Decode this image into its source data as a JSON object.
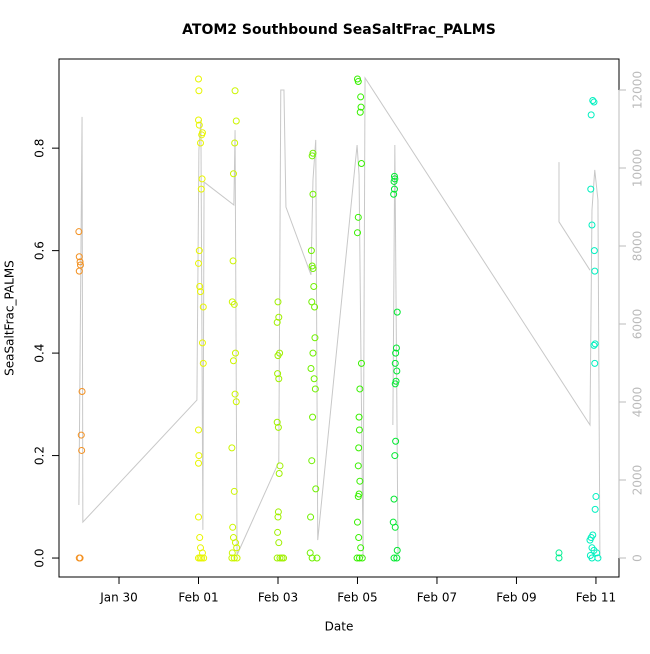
{
  "chart_data": {
    "type": "scatter",
    "title": "ATOM2 Southbound SeaSaltFrac_PALMS",
    "x_label": "Date",
    "y_label": "SeaSaltFrac_PALMS",
    "xlim": [
      28.49,
      42.58
    ],
    "xticks": [
      {
        "value": 30,
        "label": "Jan 30"
      },
      {
        "value": 32,
        "label": "Feb 01"
      },
      {
        "value": 34,
        "label": "Feb 03"
      },
      {
        "value": 36,
        "label": "Feb 05"
      },
      {
        "value": 38,
        "label": "Feb 07"
      },
      {
        "value": 40,
        "label": "Feb 09"
      },
      {
        "value": 42,
        "label": "Feb 11"
      }
    ],
    "ylim": [
      -0.037,
      0.974
    ],
    "yticks": [
      {
        "value": 0,
        "label": "0.0"
      },
      0.2,
      0.4,
      0.6,
      0.8
    ],
    "y2lim": [
      -487,
      12795
    ],
    "y2ticks": [
      0,
      2000,
      4000,
      6000,
      8000,
      10000,
      12000
    ],
    "line": {
      "color": "#c8c8c8",
      "axis": "y2",
      "x": [
        28.99,
        29.07,
        29.09,
        31.96,
        32.01,
        32.06,
        32.11,
        32.14,
        32.89,
        32.92,
        32.97,
        34.02,
        34.07,
        34.15,
        34.2,
        34.83,
        34.88,
        34.95,
        35.0,
        35.99,
        36.04,
        36.14,
        36.19,
        41.85,
        41.9,
        41.97,
        42.05,
        42.1,
        null,
        36.89,
        36.94,
        37.02,
        null,
        41.07,
        41.07,
        41.85
      ],
      "values": [
        1360,
        11310,
        920,
        4050,
        10460,
        11230,
        720,
        9640,
        9050,
        10970,
        80,
        2460,
        12000,
        12000,
        9000,
        7260,
        9690,
        10720,
        460,
        10590,
        9820,
        0,
        12310,
        3410,
        8920,
        9950,
        9180,
        0,
        null,
        3410,
        10590,
        80,
        null,
        10150,
        8620,
        7380
      ]
    },
    "series": [
      {
        "color": "#f39020",
        "x": [
          28.99,
          29.0,
          29.02,
          29.03,
          29.0,
          29.07,
          29.05,
          29.06,
          29.0,
          29.02
        ],
        "values": [
          0.637,
          0.588,
          0.578,
          0.572,
          0.56,
          0.325,
          0.24,
          0.21,
          0,
          0
        ]
      },
      {
        "color": "#e8f500",
        "x": [
          32.0,
          32.01,
          32.0,
          32.02,
          32.1,
          32.08,
          32.05,
          32.09,
          32.07,
          32.02,
          32.0,
          32.03,
          32.05,
          32.12,
          32.1,
          32.12,
          32.0,
          32.01,
          32.0,
          32.0,
          32.03,
          32.05,
          32.1,
          32.0,
          32.04,
          32.08,
          32.13
        ],
        "values": [
          0.935,
          0.912,
          0.855,
          0.845,
          0.83,
          0.826,
          0.81,
          0.74,
          0.72,
          0.6,
          0.575,
          0.53,
          0.52,
          0.49,
          0.42,
          0.38,
          0.25,
          0.2,
          0.185,
          0.08,
          0.04,
          0.02,
          0.01,
          0,
          0,
          0,
          0
        ]
      },
      {
        "color": "#ccf500",
        "x": [
          32.92,
          32.95,
          32.91,
          32.88,
          32.87,
          32.85,
          32.9,
          32.93,
          32.88,
          32.92,
          32.95,
          32.84,
          32.9,
          32.86,
          32.88,
          32.93,
          32.96,
          32.85,
          32.84,
          32.9,
          32.97
        ],
        "values": [
          0.912,
          0.853,
          0.81,
          0.75,
          0.58,
          0.5,
          0.495,
          0.4,
          0.385,
          0.32,
          0.305,
          0.215,
          0.13,
          0.06,
          0.04,
          0.03,
          0.02,
          0.01,
          0,
          0,
          0
        ]
      },
      {
        "color": "#a0f000",
        "x": [
          34.0,
          34.02,
          33.98,
          34.04,
          34.0,
          33.99,
          34.02,
          33.98,
          34.01,
          34.05,
          34.03,
          34.01,
          34.0,
          33.99,
          34.02,
          33.98,
          34.05,
          34.1,
          34.14
        ],
        "values": [
          0.5,
          0.47,
          0.46,
          0.4,
          0.395,
          0.36,
          0.35,
          0.265,
          0.255,
          0.18,
          0.165,
          0.09,
          0.08,
          0.05,
          0.03,
          0,
          0,
          0,
          0
        ]
      },
      {
        "color": "#70f000",
        "x": [
          34.88,
          34.86,
          34.88,
          34.84,
          34.86,
          34.88,
          34.9,
          34.85,
          34.92,
          34.93,
          34.88,
          34.83,
          34.91,
          34.94,
          34.87,
          34.85,
          34.95,
          34.82,
          34.81,
          34.86,
          34.98
        ],
        "values": [
          0.79,
          0.785,
          0.71,
          0.6,
          0.57,
          0.565,
          0.53,
          0.5,
          0.49,
          0.43,
          0.4,
          0.37,
          0.35,
          0.33,
          0.275,
          0.19,
          0.135,
          0.08,
          0.01,
          0,
          0
        ]
      },
      {
        "color": "#38f000",
        "x": [
          36.0,
          36.02,
          36.08,
          36.09,
          36.07,
          36.1,
          36.02,
          36.0,
          36.1,
          36.06,
          36.04,
          36.05,
          36.03,
          36.02,
          36.06,
          36.04,
          36.02,
          36.0,
          36.03,
          36.08,
          35.99,
          36.05,
          36.12
        ],
        "values": [
          0.935,
          0.93,
          0.9,
          0.88,
          0.87,
          0.77,
          0.665,
          0.635,
          0.38,
          0.33,
          0.275,
          0.25,
          0.215,
          0.18,
          0.15,
          0.125,
          0.12,
          0.07,
          0.04,
          0.02,
          0,
          0,
          0
        ]
      },
      {
        "color": "#00e830",
        "x": [
          36.93,
          36.94,
          36.92,
          36.93,
          36.91,
          37.0,
          36.98,
          36.96,
          36.95,
          36.99,
          36.97,
          36.95,
          36.96,
          36.94,
          36.92,
          36.9,
          36.95,
          37.0,
          36.92,
          36.99
        ],
        "values": [
          0.745,
          0.74,
          0.735,
          0.72,
          0.71,
          0.48,
          0.41,
          0.4,
          0.38,
          0.365,
          0.345,
          0.34,
          0.228,
          0.2,
          0.115,
          0.07,
          0.06,
          0.015,
          0,
          0
        ]
      },
      {
        "color": "#00f090",
        "x": [
          41.07,
          41.07
        ],
        "values": [
          0.01,
          0
        ]
      },
      {
        "color": "#00f0c0",
        "x": [
          41.92,
          41.95,
          41.88,
          41.87,
          41.9,
          41.96,
          41.97,
          41.98,
          41.95,
          41.97,
          42.0,
          41.98,
          41.92,
          41.88,
          41.85,
          41.9,
          41.95,
          42.02,
          41.86,
          41.9,
          42.05
        ],
        "values": [
          0.893,
          0.89,
          0.865,
          0.72,
          0.65,
          0.6,
          0.56,
          0.418,
          0.415,
          0.38,
          0.12,
          0.095,
          0.045,
          0.04,
          0.035,
          0.02,
          0.015,
          0.01,
          0.005,
          0,
          0
        ]
      }
    ]
  }
}
